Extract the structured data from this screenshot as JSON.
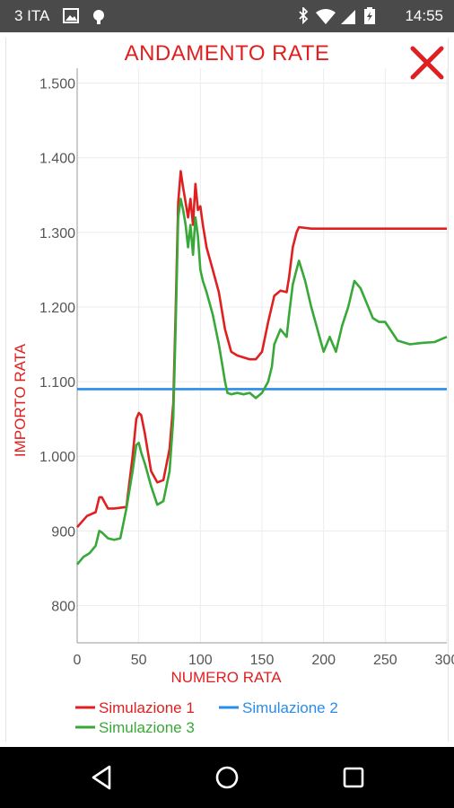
{
  "status_bar": {
    "carrier": "3 ITA",
    "time": "14:55",
    "icons": [
      "image-icon",
      "android-debug-icon",
      "bluetooth-icon",
      "wifi-icon",
      "signal-icon",
      "battery-icon"
    ]
  },
  "dialog": {
    "close_icon": "close-x-icon",
    "close_color": "#e02020"
  },
  "legend": {
    "items": [
      {
        "label": "Simulazione 1",
        "color": "#e02020"
      },
      {
        "label": "Simulazione 2",
        "color": "#2a8ce8"
      },
      {
        "label": "Simulazione 3",
        "color": "#38a838"
      }
    ]
  },
  "nav_bar": {
    "icons": [
      "back-icon",
      "home-icon",
      "recents-icon"
    ]
  },
  "chart_data": {
    "type": "line",
    "title": "ANDAMENTO RATE",
    "xlabel": "NUMERO RATA",
    "ylabel": "IMPORTO RATA",
    "xlim": [
      0,
      300
    ],
    "ylim": [
      750,
      1520
    ],
    "x_ticks": [
      "0",
      "50",
      "100",
      "150",
      "200",
      "250",
      "300"
    ],
    "y_ticks": [
      "800",
      "900",
      "1.000",
      "1.100",
      "1.200",
      "1.300",
      "1.400",
      "1.500"
    ],
    "grid": true,
    "legend_position": "bottom-left",
    "series": [
      {
        "name": "Simulazione 1",
        "color": "#e02020",
        "x": [
          0,
          8,
          15,
          18,
          20,
          25,
          30,
          40,
          45,
          48,
          50,
          52,
          55,
          60,
          65,
          70,
          75,
          78,
          80,
          82,
          84,
          86,
          88,
          90,
          92,
          94,
          96,
          98,
          100,
          102,
          105,
          110,
          115,
          120,
          125,
          130,
          140,
          145,
          150,
          155,
          160,
          165,
          170,
          172,
          175,
          178,
          180,
          190,
          200,
          250,
          300
        ],
        "values": [
          905,
          920,
          925,
          945,
          945,
          930,
          930,
          932,
          1000,
          1050,
          1058,
          1055,
          1030,
          980,
          965,
          968,
          1010,
          1070,
          1200,
          1340,
          1382,
          1360,
          1340,
          1320,
          1345,
          1310,
          1365,
          1330,
          1335,
          1310,
          1280,
          1250,
          1220,
          1170,
          1140,
          1135,
          1130,
          1130,
          1140,
          1180,
          1215,
          1222,
          1220,
          1240,
          1280,
          1300,
          1307,
          1305,
          1305,
          1305,
          1305
        ]
      },
      {
        "name": "Simulazione 2",
        "color": "#2a8ce8",
        "x": [
          0,
          300
        ],
        "values": [
          1090,
          1090
        ]
      },
      {
        "name": "Simulazione 3",
        "color": "#38a838",
        "x": [
          0,
          5,
          10,
          15,
          18,
          20,
          25,
          30,
          35,
          40,
          45,
          48,
          50,
          52,
          55,
          60,
          65,
          70,
          75,
          78,
          80,
          82,
          84,
          86,
          88,
          90,
          92,
          94,
          96,
          98,
          100,
          102,
          105,
          110,
          115,
          118,
          120,
          122,
          125,
          130,
          135,
          140,
          145,
          150,
          155,
          158,
          160,
          165,
          170,
          172,
          175,
          178,
          180,
          185,
          190,
          195,
          200,
          205,
          210,
          215,
          220,
          225,
          230,
          240,
          245,
          250,
          260,
          270,
          280,
          290,
          300
        ],
        "values": [
          855,
          865,
          870,
          880,
          900,
          898,
          890,
          888,
          890,
          930,
          980,
          1015,
          1018,
          1005,
          990,
          960,
          935,
          940,
          980,
          1050,
          1180,
          1320,
          1345,
          1330,
          1310,
          1280,
          1310,
          1270,
          1320,
          1295,
          1250,
          1235,
          1220,
          1190,
          1150,
          1120,
          1100,
          1085,
          1083,
          1085,
          1083,
          1085,
          1078,
          1085,
          1100,
          1120,
          1150,
          1170,
          1160,
          1190,
          1230,
          1250,
          1262,
          1235,
          1200,
          1170,
          1140,
          1160,
          1140,
          1175,
          1200,
          1235,
          1225,
          1185,
          1180,
          1180,
          1155,
          1150,
          1152,
          1153,
          1160
        ]
      }
    ]
  }
}
